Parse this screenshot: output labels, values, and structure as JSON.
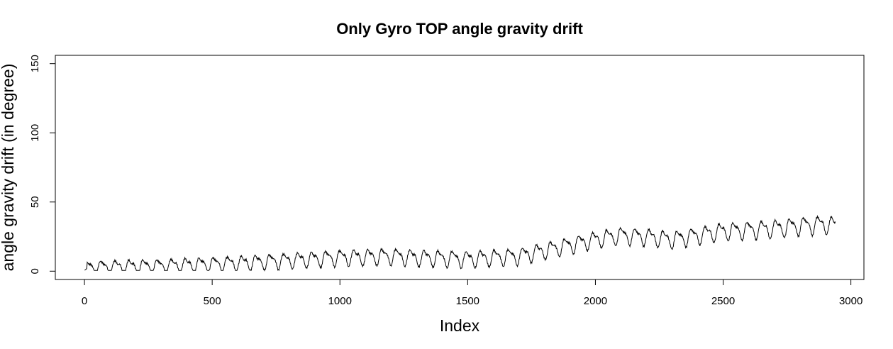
{
  "chart_data": {
    "type": "line",
    "title": "Only Gyro TOP angle gravity drift",
    "xlabel": "Index",
    "ylabel": "angle gravity drift (in degree)",
    "xlim": [
      -114,
      3051
    ],
    "ylim": [
      -6,
      156
    ],
    "x_ticks": [
      0,
      500,
      1000,
      1500,
      2000,
      2500,
      3000
    ],
    "y_ticks": [
      0,
      50,
      100,
      150
    ],
    "x_tick_labels": [
      "0",
      "500",
      "1000",
      "1500",
      "2000",
      "2500",
      "3000"
    ],
    "y_tick_labels": [
      "0",
      "50",
      "100",
      "150"
    ],
    "grid": false,
    "line_color": "#000000",
    "series": [
      {
        "name": "",
        "x_start": 1,
        "x_end": 2940,
        "trend_points": [
          [
            1,
            3
          ],
          [
            300,
            4
          ],
          [
            600,
            6
          ],
          [
            800,
            8
          ],
          [
            1000,
            10
          ],
          [
            1200,
            11
          ],
          [
            1300,
            10
          ],
          [
            1500,
            9
          ],
          [
            1700,
            11
          ],
          [
            1800,
            15
          ],
          [
            1900,
            19
          ],
          [
            2000,
            23
          ],
          [
            2100,
            26
          ],
          [
            2200,
            25
          ],
          [
            2300,
            23
          ],
          [
            2400,
            26
          ],
          [
            2500,
            29
          ],
          [
            2600,
            30
          ],
          [
            2700,
            31
          ],
          [
            2800,
            33
          ],
          [
            2900,
            34
          ],
          [
            2940,
            33
          ]
        ],
        "amplitude_points": [
          [
            1,
            4
          ],
          [
            600,
            4.5
          ],
          [
            1200,
            5
          ],
          [
            1700,
            5
          ],
          [
            2000,
            5
          ],
          [
            2940,
            5.5
          ]
        ],
        "cycle_length": 55,
        "min_value": 0.5,
        "max_value": 41
      }
    ]
  }
}
